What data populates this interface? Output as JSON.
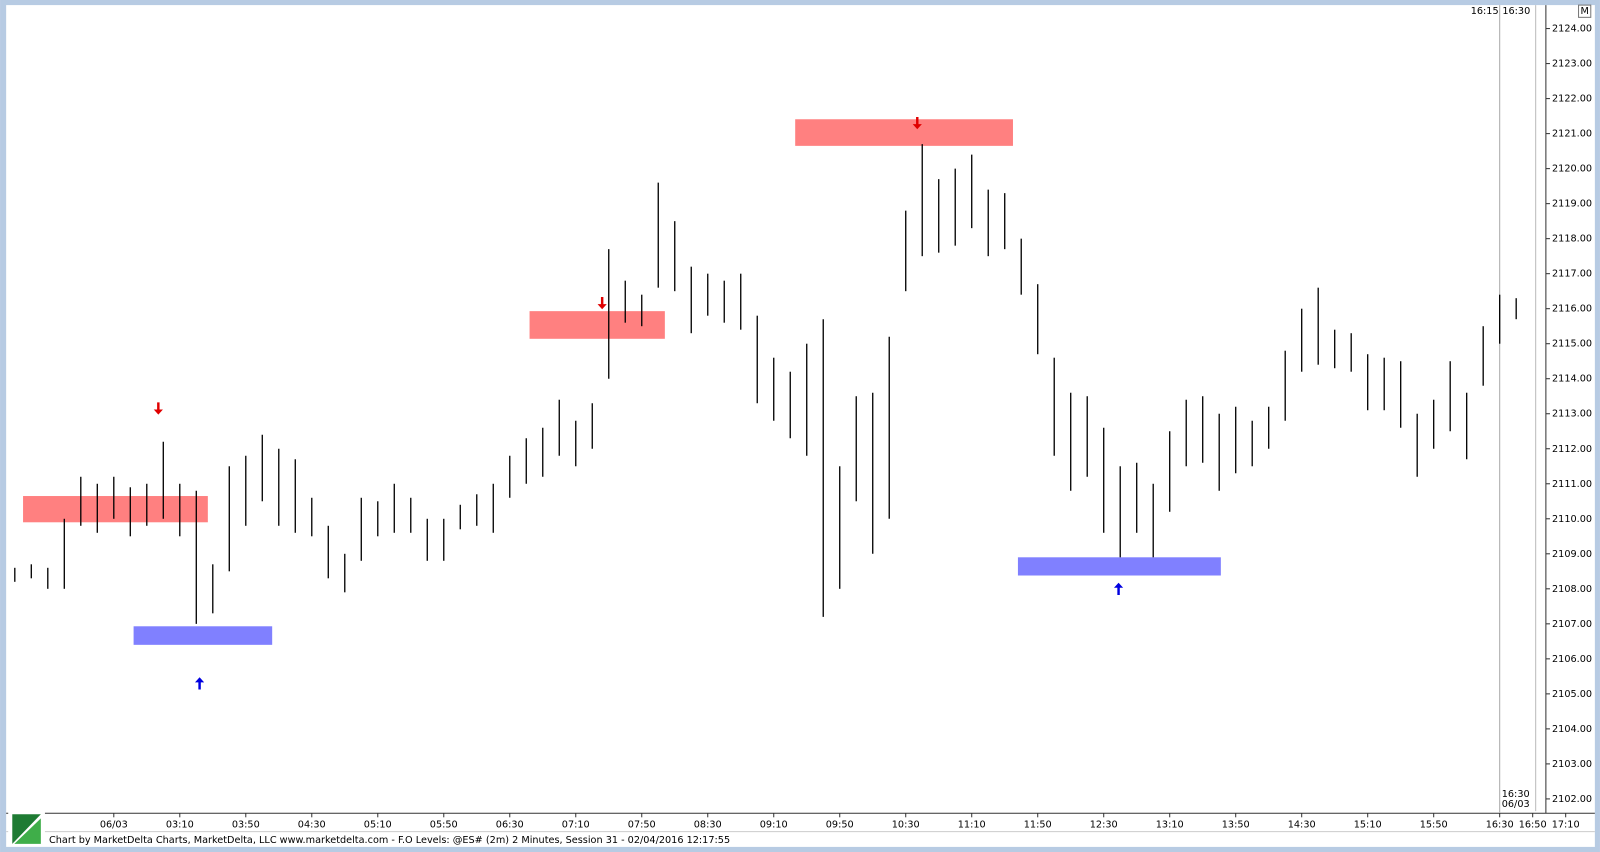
{
  "chart_data": {
    "type": "range",
    "x": [
      90,
      100,
      110,
      120,
      130,
      140,
      150,
      160,
      170,
      180,
      190,
      200,
      210,
      220,
      230,
      240,
      250,
      260,
      270,
      280,
      290,
      300,
      310,
      320,
      330,
      340,
      350,
      360,
      370,
      380,
      390,
      400,
      410,
      420,
      430,
      440,
      450,
      460,
      470,
      480,
      490,
      500,
      510,
      520,
      530,
      540,
      550,
      560,
      570,
      580,
      590,
      600,
      610,
      620,
      630,
      640,
      650,
      660,
      670,
      680,
      690,
      700,
      710,
      720,
      730,
      740,
      750,
      760,
      770,
      780,
      790,
      800,
      810,
      820,
      830,
      840,
      850,
      860,
      870,
      880,
      890,
      900,
      910,
      920,
      930,
      940,
      950,
      960,
      970,
      980,
      990,
      1000
    ],
    "high": [
      2108.6,
      2108.7,
      2108.6,
      2110.0,
      2111.2,
      2111.0,
      2111.2,
      2110.9,
      2111.0,
      2112.2,
      2111.0,
      2110.8,
      2108.7,
      2111.5,
      2111.8,
      2112.4,
      2112.0,
      2111.7,
      2110.6,
      2109.8,
      2109.0,
      2110.6,
      2110.5,
      2111.0,
      2110.6,
      2110.0,
      2110.0,
      2110.4,
      2110.7,
      2111.0,
      2111.8,
      2112.3,
      2112.6,
      2113.4,
      2112.8,
      2113.3,
      2117.7,
      2116.8,
      2116.4,
      2119.6,
      2118.5,
      2117.2,
      2117.0,
      2116.8,
      2117.0,
      2115.8,
      2114.6,
      2114.2,
      2115.0,
      2115.7,
      2111.5,
      2113.5,
      2113.6,
      2115.2,
      2118.8,
      2120.7,
      2119.7,
      2120.0,
      2120.4,
      2119.4,
      2119.3,
      2118.0,
      2116.7,
      2114.6,
      2113.6,
      2113.5,
      2112.6,
      2111.5,
      2111.6,
      2111.0,
      2112.5,
      2113.4,
      2113.5,
      2113.0,
      2113.2,
      2112.8,
      2113.2,
      2114.8,
      2116.0,
      2116.6,
      2115.4,
      2115.3,
      2114.7,
      2114.6,
      2114.5,
      2113.0,
      2113.4,
      2114.5,
      2113.6,
      2115.5,
      2116.4,
      2116.3
    ],
    "low": [
      2108.2,
      2108.3,
      2108.0,
      2108.0,
      2109.8,
      2109.6,
      2110.0,
      2109.5,
      2109.8,
      2110.0,
      2109.5,
      2107.0,
      2107.3,
      2108.5,
      2109.8,
      2110.5,
      2109.8,
      2109.6,
      2109.5,
      2108.3,
      2107.9,
      2108.8,
      2109.5,
      2109.6,
      2109.6,
      2108.8,
      2108.8,
      2109.7,
      2109.8,
      2109.6,
      2110.6,
      2111.0,
      2111.2,
      2111.8,
      2111.5,
      2112.0,
      2114.0,
      2115.6,
      2115.5,
      2116.6,
      2116.5,
      2115.3,
      2115.8,
      2115.6,
      2115.4,
      2113.3,
      2112.8,
      2112.3,
      2111.8,
      2107.2,
      2108.0,
      2110.5,
      2109.0,
      2110.0,
      2116.5,
      2117.5,
      2117.6,
      2117.8,
      2118.3,
      2117.5,
      2117.7,
      2116.4,
      2114.7,
      2111.8,
      2110.8,
      2111.2,
      2109.6,
      2108.9,
      2109.6,
      2108.9,
      2110.2,
      2111.5,
      2111.6,
      2110.8,
      2111.3,
      2111.5,
      2112.0,
      2112.8,
      2114.2,
      2114.4,
      2114.3,
      2114.2,
      2113.1,
      2113.1,
      2112.6,
      2111.2,
      2112.0,
      2112.5,
      2111.7,
      2113.8,
      2115.0,
      2115.7
    ],
    "color": "#000000",
    "xlim": [
      86,
      1018
    ],
    "ylim": [
      2101.6,
      2124.6
    ],
    "xticks": [
      {
        "value": 150,
        "label": "06/03"
      },
      {
        "value": 190,
        "label": "03:10"
      },
      {
        "value": 230,
        "label": "03:50"
      },
      {
        "value": 270,
        "label": "04:30"
      },
      {
        "value": 310,
        "label": "05:10"
      },
      {
        "value": 350,
        "label": "05:50"
      },
      {
        "value": 390,
        "label": "06:30"
      },
      {
        "value": 430,
        "label": "07:10"
      },
      {
        "value": 470,
        "label": "07:50"
      },
      {
        "value": 510,
        "label": "08:30"
      },
      {
        "value": 550,
        "label": "09:10"
      },
      {
        "value": 590,
        "label": "09:50"
      },
      {
        "value": 630,
        "label": "10:30"
      },
      {
        "value": 670,
        "label": "11:10"
      },
      {
        "value": 710,
        "label": "11:50"
      },
      {
        "value": 750,
        "label": "12:30"
      },
      {
        "value": 790,
        "label": "13:10"
      },
      {
        "value": 830,
        "label": "13:50"
      },
      {
        "value": 870,
        "label": "14:30"
      },
      {
        "value": 910,
        "label": "15:10"
      },
      {
        "value": 950,
        "label": "15:50"
      },
      {
        "value": 990,
        "label": "16:30"
      },
      {
        "value": 1010,
        "label": "16:50"
      },
      {
        "value": 1030,
        "label": "17:10"
      }
    ],
    "yticks": [
      {
        "value": 2102,
        "label": "2102.00"
      },
      {
        "value": 2103,
        "label": "2103.00"
      },
      {
        "value": 2104,
        "label": "2104.00"
      },
      {
        "value": 2105,
        "label": "2105.00"
      },
      {
        "value": 2106,
        "label": "2106.00"
      },
      {
        "value": 2107,
        "label": "2107.00"
      },
      {
        "value": 2108,
        "label": "2108.00"
      },
      {
        "value": 2109,
        "label": "2109.00"
      },
      {
        "value": 2110,
        "label": "2110.00"
      },
      {
        "value": 2111,
        "label": "2111.00"
      },
      {
        "value": 2112,
        "label": "2112.00"
      },
      {
        "value": 2113,
        "label": "2113.00"
      },
      {
        "value": 2114,
        "label": "2114.00"
      },
      {
        "value": 2115,
        "label": "2115.00"
      },
      {
        "value": 2116,
        "label": "2116.00"
      },
      {
        "value": 2117,
        "label": "2117.00"
      },
      {
        "value": 2118,
        "label": "2118.00"
      },
      {
        "value": 2119,
        "label": "2119.00"
      },
      {
        "value": 2120,
        "label": "2120.00"
      },
      {
        "value": 2121,
        "label": "2121.00"
      },
      {
        "value": 2122,
        "label": "2122.00"
      },
      {
        "value": 2123,
        "label": "2123.00"
      },
      {
        "value": 2124,
        "label": "2124.00"
      }
    ],
    "zones": [
      {
        "from": 95,
        "to": 207,
        "low": 2109.9,
        "high": 2110.65,
        "color": "#ff8080",
        "arrow_x": 177,
        "arrow_y": 2113.15,
        "arrow_color": "#e00000"
      },
      {
        "from": 402,
        "to": 484,
        "low": 2115.14,
        "high": 2115.93,
        "color": "#ff8080",
        "arrow_x": 446,
        "arrow_y": 2116.16,
        "arrow_color": "#e00000"
      },
      {
        "from": 563,
        "to": 695,
        "low": 2120.65,
        "high": 2121.41,
        "color": "#ff8080",
        "arrow_x": 637,
        "arrow_y": 2121.3,
        "arrow_color": "#e00000"
      },
      {
        "from": 162,
        "to": 246,
        "low": 2106.4,
        "high": 2106.93,
        "color": "#8080ff",
        "arrow_x": 202,
        "arrow_y": 2105.3,
        "arrow_color": "#0000e0"
      },
      {
        "from": 698,
        "to": 821,
        "low": 2108.38,
        "high": 2108.9,
        "color": "#8080ff",
        "arrow_x": 759,
        "arrow_y": 2108.0,
        "arrow_color": "#0000e0"
      }
    ],
    "session_x": 990,
    "session_label": [
      "16:30",
      "06/03"
    ],
    "top_labels": [
      "16:15",
      "16:30"
    ],
    "corner_label": "M",
    "footer": "Chart by MarketDelta Charts, MarketDelta, LLC www.marketdelta.com - F.O Levels: @ES# (2m) 2 Minutes, Session 31 - 02/04/2016 12:17:55"
  }
}
